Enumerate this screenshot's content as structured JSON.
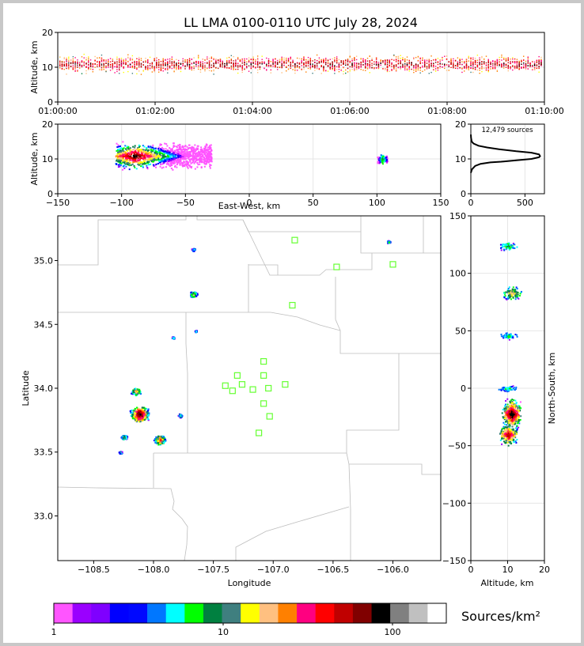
{
  "chart_data": [
    {
      "type": "scatter",
      "panel": "altitude-vs-time",
      "title": "LL LMA 0100-0110 UTC July 28, 2024",
      "xlabel": "",
      "ylabel": "Altitude, km",
      "x_ticks": [
        "01:00:00",
        "01:02:00",
        "01:04:00",
        "01:06:00",
        "01:08:00",
        "01:10:00"
      ],
      "y_ticks": [
        "0",
        "10",
        "20"
      ],
      "ylim": [
        0,
        20
      ],
      "altitude_band_km": [
        5,
        16
      ],
      "peak_altitude_km": 11
    },
    {
      "type": "heatmap",
      "panel": "altitude-vs-east-west",
      "xlabel": "East-West, km",
      "ylabel": "Altitude, km",
      "xlim": [
        -150,
        150
      ],
      "ylim": [
        0,
        20
      ],
      "x_ticks": [
        "−150",
        "−100",
        "−50",
        "0",
        "50",
        "100",
        "150"
      ],
      "y_ticks": [
        "0",
        "10",
        "20"
      ],
      "clusters": [
        {
          "x_range": [
            -105,
            -30
          ],
          "alt_range": [
            5,
            18
          ],
          "peak_x": -90,
          "peak_alt": 11
        },
        {
          "x_range": [
            100,
            108
          ],
          "alt_range": [
            8,
            13
          ],
          "peak_x": 104,
          "peak_alt": 10
        }
      ]
    },
    {
      "type": "line",
      "panel": "altitude-histogram",
      "annotation": "12,479 sources",
      "x_ticks": [
        "0",
        "500"
      ],
      "y_ticks": [
        "0",
        "10",
        "20"
      ],
      "xlim": [
        0,
        680
      ],
      "ylim": [
        0,
        20
      ],
      "points": [
        [
          0,
          6
        ],
        [
          10,
          7
        ],
        [
          40,
          8
        ],
        [
          90,
          8.6
        ],
        [
          180,
          9
        ],
        [
          280,
          9.2
        ],
        [
          420,
          9.6
        ],
        [
          560,
          10
        ],
        [
          630,
          10.5
        ],
        [
          640,
          10.8
        ],
        [
          630,
          11.3
        ],
        [
          560,
          11.8
        ],
        [
          420,
          12.2
        ],
        [
          260,
          12.8
        ],
        [
          150,
          13.3
        ],
        [
          70,
          13.8
        ],
        [
          25,
          14.4
        ],
        [
          8,
          15
        ],
        [
          2,
          16
        ],
        [
          0,
          17
        ]
      ]
    },
    {
      "type": "heatmap",
      "panel": "plan-view",
      "xlabel": "Longitude",
      "ylabel": "Latitude",
      "xlim": [
        -108.8,
        -105.6
      ],
      "ylim": [
        32.65,
        35.35
      ],
      "x_ticks": [
        "−108.5",
        "−108.0",
        "−107.5",
        "−107.0",
        "−106.5",
        "−106.0"
      ],
      "y_ticks": [
        "33.0",
        "33.5",
        "34.0",
        "34.5",
        "35.0"
      ],
      "stations": [
        [
          -106.82,
          35.16
        ],
        [
          -106.47,
          34.95
        ],
        [
          -106.0,
          34.97
        ],
        [
          -106.84,
          34.65
        ],
        [
          -107.08,
          34.21
        ],
        [
          -107.3,
          34.1
        ],
        [
          -107.08,
          34.1
        ],
        [
          -107.4,
          34.02
        ],
        [
          -107.26,
          34.03
        ],
        [
          -107.34,
          33.98
        ],
        [
          -107.17,
          33.99
        ],
        [
          -107.04,
          34.0
        ],
        [
          -106.9,
          34.03
        ],
        [
          -107.08,
          33.88
        ],
        [
          -107.03,
          33.78
        ],
        [
          -107.12,
          33.65
        ]
      ],
      "storm_cells": [
        {
          "lon": -108.12,
          "lat": 33.8,
          "size": 3
        },
        {
          "lon": -108.15,
          "lat": 33.98,
          "size": 1.5
        },
        {
          "lon": -107.95,
          "lat": 33.6,
          "size": 1.8
        },
        {
          "lon": -108.25,
          "lat": 33.62,
          "size": 1
        },
        {
          "lon": -108.28,
          "lat": 33.5,
          "size": 0.6
        },
        {
          "lon": -107.78,
          "lat": 33.79,
          "size": 0.7
        },
        {
          "lon": -107.67,
          "lat": 34.74,
          "size": 1.2
        },
        {
          "lon": -107.67,
          "lat": 35.09,
          "size": 0.6
        },
        {
          "lon": -107.84,
          "lat": 34.4,
          "size": 0.5
        },
        {
          "lon": -107.65,
          "lat": 34.45,
          "size": 0.4
        },
        {
          "lon": -106.04,
          "lat": 35.15,
          "size": 0.6
        }
      ]
    },
    {
      "type": "heatmap",
      "panel": "north-south-vs-altitude",
      "xlabel": "Altitude, km",
      "ylabel": "North-South, km",
      "xlim": [
        0,
        20
      ],
      "ylim": [
        -150,
        150
      ],
      "x_ticks": [
        "0",
        "10",
        "20"
      ],
      "y_ticks": [
        "−150",
        "−100",
        "−50",
        "0",
        "50",
        "100",
        "150"
      ],
      "clusters": [
        {
          "alt": 10,
          "ns": 124,
          "size": 0.5
        },
        {
          "alt": 11,
          "ns": 83,
          "size": 0.8
        },
        {
          "alt": 10,
          "ns": 46,
          "size": 0.4
        },
        {
          "alt": 10,
          "ns": 0,
          "size": 0.4
        },
        {
          "alt": 11,
          "ns": -22,
          "size": 1.6
        },
        {
          "alt": 10,
          "ns": -40,
          "size": 1.2
        }
      ]
    }
  ],
  "colorbar": {
    "label": "Sources/km²",
    "tick_labels": [
      "1",
      "10",
      "100"
    ],
    "colors": [
      "#ff55ff",
      "#9a00ff",
      "#7f00ff",
      "#0000ff",
      "#0008ff",
      "#0077ff",
      "#00ffff",
      "#00ff00",
      "#008040",
      "#3f7f7f",
      "#ffff00",
      "#ffc080",
      "#ff8000",
      "#ff0080",
      "#ff0000",
      "#c00000",
      "#800000",
      "#000000",
      "#808080",
      "#c0c0c0",
      "#ffffff"
    ]
  }
}
